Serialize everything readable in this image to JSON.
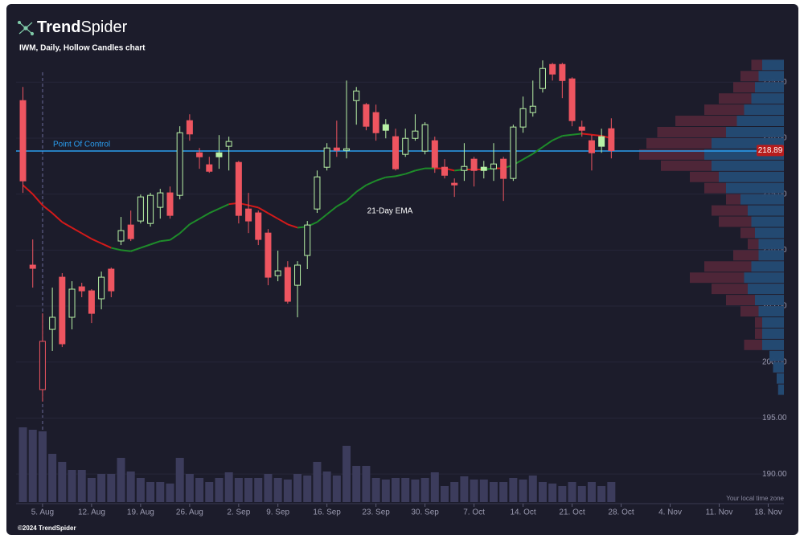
{
  "brand": [
    "Trend",
    "Spider"
  ],
  "chart_data": {
    "type": "candlestick",
    "title": "IWM, Daily, Hollow Candles chart",
    "x": [
      -2,
      -1,
      0,
      1,
      2,
      3,
      4,
      5,
      6,
      7,
      8,
      9,
      10,
      11,
      12,
      13,
      14,
      15,
      16,
      17,
      18,
      19,
      20,
      21,
      22,
      23,
      24,
      25,
      26,
      27,
      28,
      29,
      30,
      31,
      32,
      33,
      34,
      35,
      36,
      37,
      38,
      39,
      40,
      41,
      42,
      43,
      44,
      45,
      46,
      47,
      48,
      49,
      50,
      51,
      52,
      53,
      54,
      55,
      56,
      57,
      58
    ],
    "open": [
      223.35,
      208.66,
      197.54,
      202.92,
      207.58,
      204.0,
      206.72,
      206.36,
      205.65,
      208.3,
      210.81,
      212.24,
      212.6,
      212.38,
      213.82,
      215.11,
      214.89,
      221.56,
      218.69,
      217.62,
      218.69,
      219.27,
      217.83,
      213.67,
      213.32,
      211.52,
      207.72,
      208.44,
      206.86,
      209.52,
      213.67,
      217.4,
      219.12,
      218.91,
      223.35,
      222.99,
      222.28,
      221.2,
      220.13,
      218.55,
      219.98,
      218.84,
      219.77,
      217.4,
      215.97,
      217.11,
      218.12,
      217.4,
      217.26,
      218.12,
      216.4,
      220.99,
      222.28,
      224.43,
      226.58,
      226.58,
      225.29,
      220.99,
      219.77,
      220.13,
      220.84
    ],
    "high": [
      224.57,
      210.95,
      204.35,
      206.65,
      207.94,
      207.22,
      207.08,
      206.51,
      208.08,
      208.44,
      212.96,
      213.53,
      214.96,
      215.11,
      215.47,
      215.68,
      221.06,
      222.13,
      219.12,
      218.33,
      220.27,
      220.13,
      217.97,
      215.11,
      213.53,
      211.88,
      209.95,
      209.01,
      209.01,
      212.6,
      217.11,
      219.55,
      221.56,
      225.14,
      224.57,
      223.14,
      222.99,
      221.7,
      220.84,
      220.84,
      222.13,
      221.42,
      220.13,
      218.12,
      216.4,
      219.55,
      218.33,
      217.97,
      219.55,
      218.33,
      221.2,
      223.71,
      225.14,
      226.94,
      226.72,
      226.72,
      225.43,
      221.56,
      220.27,
      220.84,
      221.77
    ],
    "low": [
      215.11,
      206.65,
      196.47,
      200.99,
      201.34,
      202.92,
      205.79,
      203.49,
      204.71,
      205.79,
      210.45,
      210.81,
      212.38,
      212.1,
      212.81,
      212.81,
      214.53,
      219.77,
      217.26,
      216.9,
      217.26,
      217.11,
      212.38,
      211.52,
      210.45,
      206.86,
      207.22,
      205.22,
      204.0,
      208.3,
      213.32,
      217.11,
      218.33,
      218.19,
      221.2,
      220.7,
      219.77,
      219.98,
      217.11,
      218.33,
      219.77,
      218.55,
      216.9,
      216.4,
      214.75,
      216.18,
      215.68,
      216.4,
      216.18,
      214.39,
      216.18,
      220.48,
      221.92,
      224.07,
      225.14,
      223.57,
      221.06,
      220.13,
      217.11,
      218.69,
      218.19
    ],
    "close": [
      216.18,
      208.37,
      201.85,
      204.0,
      201.63,
      206.51,
      206.36,
      204.35,
      207.58,
      206.36,
      211.74,
      211.02,
      214.75,
      214.89,
      215.11,
      213.1,
      220.48,
      220.37,
      218.33,
      217.04,
      218.33,
      219.7,
      213.1,
      212.6,
      210.95,
      207.58,
      208.15,
      205.43,
      208.66,
      212.24,
      216.54,
      219.12,
      218.91,
      219.05,
      224.21,
      221.06,
      220.48,
      220.7,
      217.26,
      219.98,
      220.63,
      221.2,
      217.4,
      216.68,
      215.82,
      217.47,
      217.11,
      217.11,
      217.69,
      216.4,
      220.99,
      222.63,
      222.85,
      226.22,
      225.72,
      225.14,
      221.56,
      220.7,
      218.69,
      219.27,
      218.89
    ],
    "volume": [
      46.5,
      45,
      44,
      30,
      25,
      20,
      20,
      15,
      17.5,
      17.5,
      27.5,
      19,
      15,
      12.5,
      12.5,
      11.5,
      27.5,
      17.5,
      15,
      12.5,
      15,
      18.5,
      15,
      15,
      15,
      17.5,
      15,
      14,
      17.5,
      16.5,
      25,
      19,
      16.5,
      35,
      22.5,
      22.5,
      15,
      14,
      15,
      15,
      14,
      15,
      18.5,
      10,
      12.5,
      16,
      14,
      14,
      12.5,
      12.5,
      15,
      14,
      16.5,
      12.5,
      11.5,
      10,
      12.5,
      10,
      12.5,
      10,
      12.5
    ],
    "ema": {
      "name": "21-Day EMA",
      "values": [
        215.8,
        215.0,
        214.0,
        213.3,
        212.5,
        212.0,
        211.5,
        211.0,
        210.6,
        210.2,
        210.0,
        209.9,
        210.2,
        210.5,
        210.8,
        210.9,
        211.5,
        212.3,
        212.8,
        213.3,
        213.7,
        214.1,
        214.2,
        214.0,
        213.8,
        213.3,
        212.8,
        212.3,
        212.0,
        212.1,
        212.5,
        213.2,
        213.9,
        214.4,
        215.2,
        215.8,
        216.2,
        216.5,
        216.6,
        216.8,
        217.1,
        217.3,
        217.3,
        217.3,
        217.1,
        217.2,
        217.2,
        217.2,
        217.3,
        217.3,
        217.6,
        218.1,
        218.6,
        219.2,
        219.8,
        220.2,
        220.3,
        220.4,
        220.3,
        220.2,
        220.0
      ]
    },
    "poc": {
      "name": "Point Of Control",
      "value": 218.85
    },
    "profile": {
      "bins": [
        197,
        198,
        199,
        200,
        201,
        202,
        203,
        204,
        205,
        206,
        207,
        208,
        209,
        210,
        211,
        212,
        213,
        214,
        215,
        216,
        217,
        218,
        219,
        220,
        221,
        222,
        223,
        224,
        225,
        226,
        227
      ],
      "total": [
        8,
        10,
        15,
        20,
        55,
        40,
        40,
        60,
        80,
        100,
        130,
        110,
        70,
        50,
        60,
        90,
        100,
        80,
        110,
        130,
        170,
        200,
        190,
        175,
        150,
        110,
        90,
        70,
        60,
        45
      ],
      "up": [
        8,
        10,
        15,
        20,
        30,
        30,
        30,
        35,
        40,
        50,
        55,
        45,
        35,
        35,
        40,
        45,
        50,
        60,
        80,
        90,
        100,
        110,
        100,
        80,
        65,
        55,
        45,
        40,
        35,
        30
      ]
    },
    "up_color": "#b8f2a6",
    "down_color": "#ee5560",
    "ema_up_color": "#1e8c2a",
    "ema_down_color": "#d41a1a",
    "volume_color": "#3c3c5c",
    "poc_color": "#2a9ef0",
    "xlim": [
      -2.7,
      75.6
    ],
    "xticks": [
      {
        "value": 0,
        "label": "5. Aug"
      },
      {
        "value": 5,
        "label": "12. Aug"
      },
      {
        "value": 10,
        "label": "19. Aug"
      },
      {
        "value": 15,
        "label": "26. Aug"
      },
      {
        "value": 20,
        "label": "2. Sep"
      },
      {
        "value": 24,
        "label": "9. Sep"
      },
      {
        "value": 29,
        "label": "16. Sep"
      },
      {
        "value": 34,
        "label": "23. Sep"
      },
      {
        "value": 39,
        "label": "30. Sep"
      },
      {
        "value": 44,
        "label": "7. Oct"
      },
      {
        "value": 49,
        "label": "14. Oct"
      },
      {
        "value": 54,
        "label": "21. Oct"
      },
      {
        "value": 59,
        "label": "28. Oct"
      },
      {
        "value": 64,
        "label": "4. Nov"
      },
      {
        "value": 69,
        "label": "11. Nov"
      },
      {
        "value": 74,
        "label": "18. Nov"
      }
    ],
    "ylim": [
      187.5,
      230.9
    ],
    "yticks": [
      {
        "value": 190,
        "label": "190.00"
      },
      {
        "value": 195,
        "label": "195.00"
      },
      {
        "value": 200,
        "label": "200.00"
      },
      {
        "value": 205,
        "label": "205.00"
      },
      {
        "value": 210,
        "label": "210.00"
      },
      {
        "value": 215,
        "label": "215.00"
      },
      {
        "value": 220,
        "label": "220.00"
      },
      {
        "value": 225,
        "label": "225.00"
      }
    ],
    "grid": true
  },
  "timezone_note": "Your local time zone",
  "footer": "©2024 TrendSpider"
}
